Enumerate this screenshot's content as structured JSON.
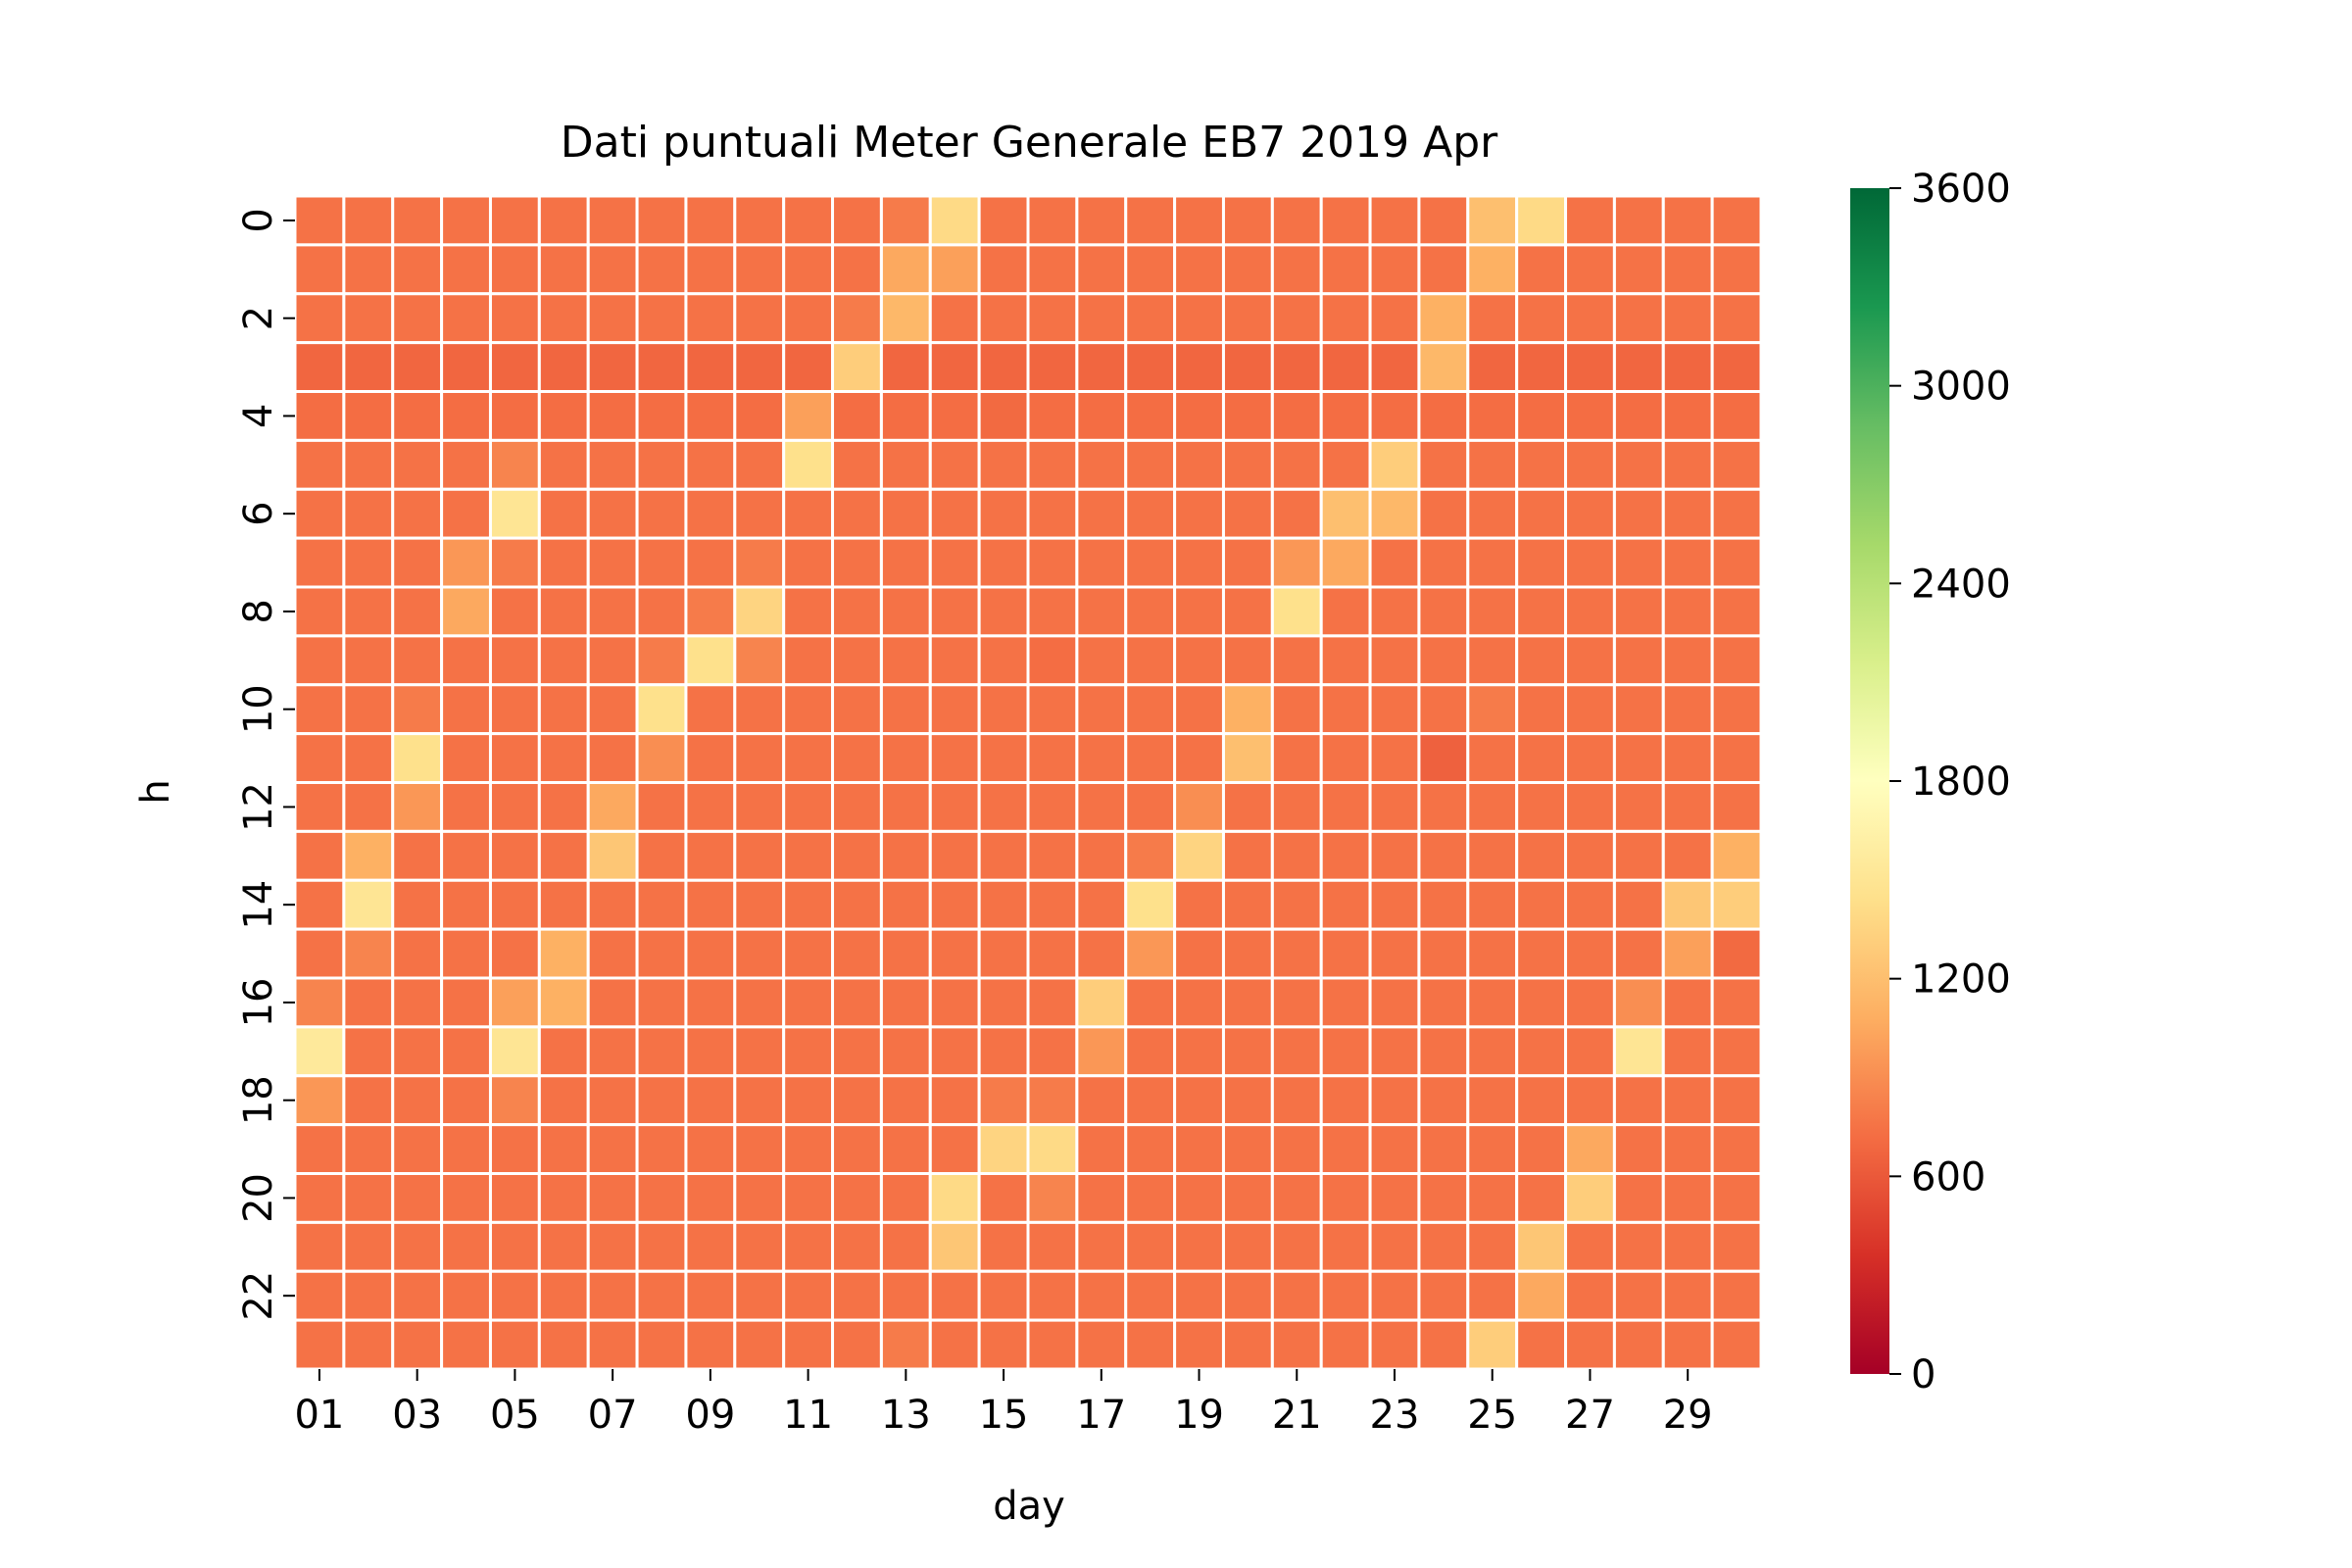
{
  "chart_data": {
    "type": "heatmap",
    "title": "Dati puntuali Meter Generale EB7 2019 Apr",
    "xlabel": "day",
    "ylabel": "h",
    "x_categories": [
      "01",
      "02",
      "03",
      "04",
      "05",
      "06",
      "07",
      "08",
      "09",
      "10",
      "11",
      "12",
      "13",
      "14",
      "15",
      "16",
      "17",
      "18",
      "19",
      "20",
      "21",
      "22",
      "23",
      "24",
      "25",
      "26",
      "27",
      "28",
      "29",
      "30"
    ],
    "x_tick_labels": [
      "01",
      "03",
      "05",
      "07",
      "09",
      "11",
      "13",
      "15",
      "17",
      "19",
      "21",
      "23",
      "25",
      "27",
      "29"
    ],
    "y_categories": [
      0,
      1,
      2,
      3,
      4,
      5,
      6,
      7,
      8,
      9,
      10,
      11,
      12,
      13,
      14,
      15,
      16,
      17,
      18,
      19,
      20,
      21,
      22,
      23
    ],
    "y_tick_labels": [
      "0",
      "2",
      "4",
      "6",
      "8",
      "10",
      "12",
      "14",
      "16",
      "18",
      "20",
      "22"
    ],
    "colormap": "RdYlGn",
    "colorbar": {
      "min": 0,
      "max": 3600,
      "ticks": [
        "0",
        "600",
        "1200",
        "1800",
        "2400",
        "3000",
        "3600"
      ]
    },
    "grid": true,
    "baseline_value": 750,
    "values": [
      [
        750,
        750,
        750,
        750,
        750,
        750,
        750,
        750,
        750,
        750,
        750,
        750,
        800,
        1400,
        750,
        750,
        750,
        750,
        750,
        750,
        750,
        750,
        750,
        750,
        1200,
        1400,
        750,
        750,
        750,
        750
      ],
      [
        750,
        750,
        750,
        750,
        750,
        750,
        750,
        750,
        750,
        750,
        750,
        750,
        1050,
        1000,
        750,
        750,
        750,
        750,
        750,
        750,
        750,
        750,
        750,
        750,
        1100,
        750,
        750,
        750,
        750,
        750
      ],
      [
        750,
        750,
        750,
        750,
        750,
        750,
        750,
        750,
        750,
        750,
        750,
        800,
        1150,
        750,
        750,
        750,
        750,
        750,
        750,
        750,
        750,
        750,
        750,
        1100,
        750,
        750,
        750,
        750,
        750,
        750
      ],
      [
        680,
        680,
        680,
        680,
        680,
        680,
        680,
        680,
        680,
        680,
        680,
        1300,
        680,
        680,
        680,
        680,
        680,
        680,
        680,
        680,
        680,
        680,
        680,
        1150,
        680,
        680,
        680,
        680,
        680,
        680
      ],
      [
        720,
        720,
        720,
        720,
        720,
        720,
        720,
        720,
        720,
        720,
        1000,
        720,
        720,
        720,
        700,
        720,
        720,
        720,
        720,
        720,
        720,
        720,
        720,
        720,
        720,
        720,
        720,
        720,
        720,
        720
      ],
      [
        750,
        750,
        750,
        750,
        850,
        750,
        750,
        750,
        750,
        750,
        1450,
        750,
        750,
        750,
        750,
        750,
        750,
        750,
        750,
        750,
        750,
        750,
        1300,
        750,
        750,
        750,
        750,
        750,
        750,
        750
      ],
      [
        750,
        750,
        750,
        750,
        1500,
        750,
        750,
        750,
        750,
        750,
        750,
        750,
        750,
        750,
        750,
        750,
        750,
        750,
        750,
        750,
        750,
        1200,
        1150,
        750,
        750,
        750,
        750,
        750,
        750,
        750
      ],
      [
        750,
        750,
        750,
        950,
        800,
        750,
        750,
        750,
        750,
        800,
        750,
        750,
        750,
        750,
        750,
        750,
        750,
        750,
        750,
        750,
        950,
        1050,
        750,
        750,
        750,
        750,
        750,
        750,
        750,
        750
      ],
      [
        750,
        750,
        750,
        1050,
        750,
        750,
        750,
        750,
        800,
        1350,
        750,
        750,
        750,
        750,
        750,
        750,
        750,
        750,
        750,
        750,
        1450,
        750,
        750,
        750,
        750,
        750,
        750,
        750,
        750,
        750
      ],
      [
        750,
        750,
        750,
        750,
        750,
        750,
        750,
        800,
        1450,
        850,
        750,
        750,
        750,
        750,
        750,
        720,
        750,
        750,
        750,
        750,
        750,
        750,
        750,
        750,
        750,
        750,
        750,
        750,
        750,
        750
      ],
      [
        750,
        750,
        800,
        750,
        750,
        750,
        750,
        1450,
        750,
        750,
        750,
        750,
        750,
        750,
        750,
        750,
        750,
        750,
        750,
        1100,
        750,
        750,
        750,
        750,
        800,
        750,
        750,
        750,
        750,
        750
      ],
      [
        750,
        750,
        1450,
        750,
        750,
        750,
        750,
        900,
        750,
        750,
        750,
        750,
        750,
        750,
        750,
        750,
        750,
        750,
        750,
        1200,
        750,
        750,
        750,
        650,
        750,
        750,
        750,
        750,
        750,
        750
      ],
      [
        750,
        750,
        950,
        750,
        750,
        750,
        1050,
        750,
        750,
        750,
        750,
        750,
        750,
        750,
        750,
        750,
        750,
        750,
        900,
        750,
        750,
        750,
        750,
        750,
        750,
        750,
        750,
        750,
        750,
        750
      ],
      [
        750,
        1100,
        750,
        750,
        750,
        750,
        1250,
        750,
        750,
        750,
        750,
        750,
        750,
        750,
        750,
        750,
        750,
        800,
        1350,
        750,
        750,
        750,
        750,
        750,
        750,
        750,
        750,
        750,
        750,
        1100
      ],
      [
        750,
        1500,
        750,
        750,
        750,
        750,
        750,
        750,
        750,
        750,
        750,
        750,
        750,
        750,
        750,
        750,
        750,
        1450,
        750,
        750,
        750,
        750,
        750,
        750,
        750,
        750,
        750,
        750,
        1250,
        1300
      ],
      [
        750,
        850,
        750,
        750,
        750,
        1100,
        750,
        750,
        750,
        750,
        750,
        750,
        750,
        750,
        750,
        750,
        750,
        950,
        750,
        750,
        750,
        750,
        750,
        750,
        750,
        750,
        750,
        750,
        1000,
        700
      ],
      [
        850,
        750,
        750,
        750,
        1000,
        1100,
        750,
        750,
        750,
        750,
        750,
        750,
        750,
        750,
        750,
        750,
        1300,
        750,
        750,
        750,
        750,
        750,
        750,
        750,
        750,
        750,
        750,
        900,
        750,
        750
      ],
      [
        1550,
        750,
        750,
        750,
        1500,
        750,
        750,
        750,
        750,
        750,
        750,
        750,
        750,
        750,
        750,
        750,
        950,
        750,
        750,
        750,
        750,
        750,
        750,
        750,
        750,
        750,
        750,
        1500,
        750,
        750
      ],
      [
        950,
        750,
        750,
        750,
        850,
        750,
        750,
        750,
        750,
        750,
        750,
        750,
        750,
        750,
        800,
        800,
        750,
        750,
        750,
        750,
        750,
        750,
        750,
        750,
        750,
        750,
        750,
        750,
        750,
        750
      ],
      [
        750,
        750,
        750,
        750,
        750,
        750,
        750,
        750,
        750,
        750,
        750,
        750,
        750,
        750,
        1350,
        1400,
        750,
        750,
        750,
        750,
        750,
        750,
        750,
        750,
        750,
        750,
        1050,
        750,
        750,
        750
      ],
      [
        750,
        750,
        750,
        750,
        750,
        750,
        750,
        750,
        750,
        750,
        750,
        750,
        750,
        1400,
        750,
        850,
        750,
        750,
        750,
        750,
        750,
        750,
        750,
        750,
        750,
        750,
        1300,
        750,
        750,
        750
      ],
      [
        750,
        750,
        750,
        750,
        750,
        750,
        750,
        750,
        750,
        750,
        750,
        750,
        750,
        1250,
        750,
        750,
        750,
        750,
        750,
        750,
        750,
        750,
        750,
        750,
        750,
        1250,
        750,
        750,
        750,
        750
      ],
      [
        750,
        750,
        750,
        750,
        750,
        750,
        750,
        750,
        750,
        750,
        750,
        750,
        750,
        750,
        750,
        750,
        750,
        750,
        750,
        750,
        750,
        750,
        750,
        750,
        750,
        1050,
        750,
        750,
        750,
        750
      ],
      [
        750,
        750,
        750,
        750,
        750,
        750,
        750,
        750,
        750,
        750,
        750,
        750,
        800,
        750,
        750,
        750,
        750,
        750,
        750,
        750,
        750,
        750,
        750,
        750,
        1300,
        750,
        750,
        750,
        750,
        750
      ]
    ]
  }
}
